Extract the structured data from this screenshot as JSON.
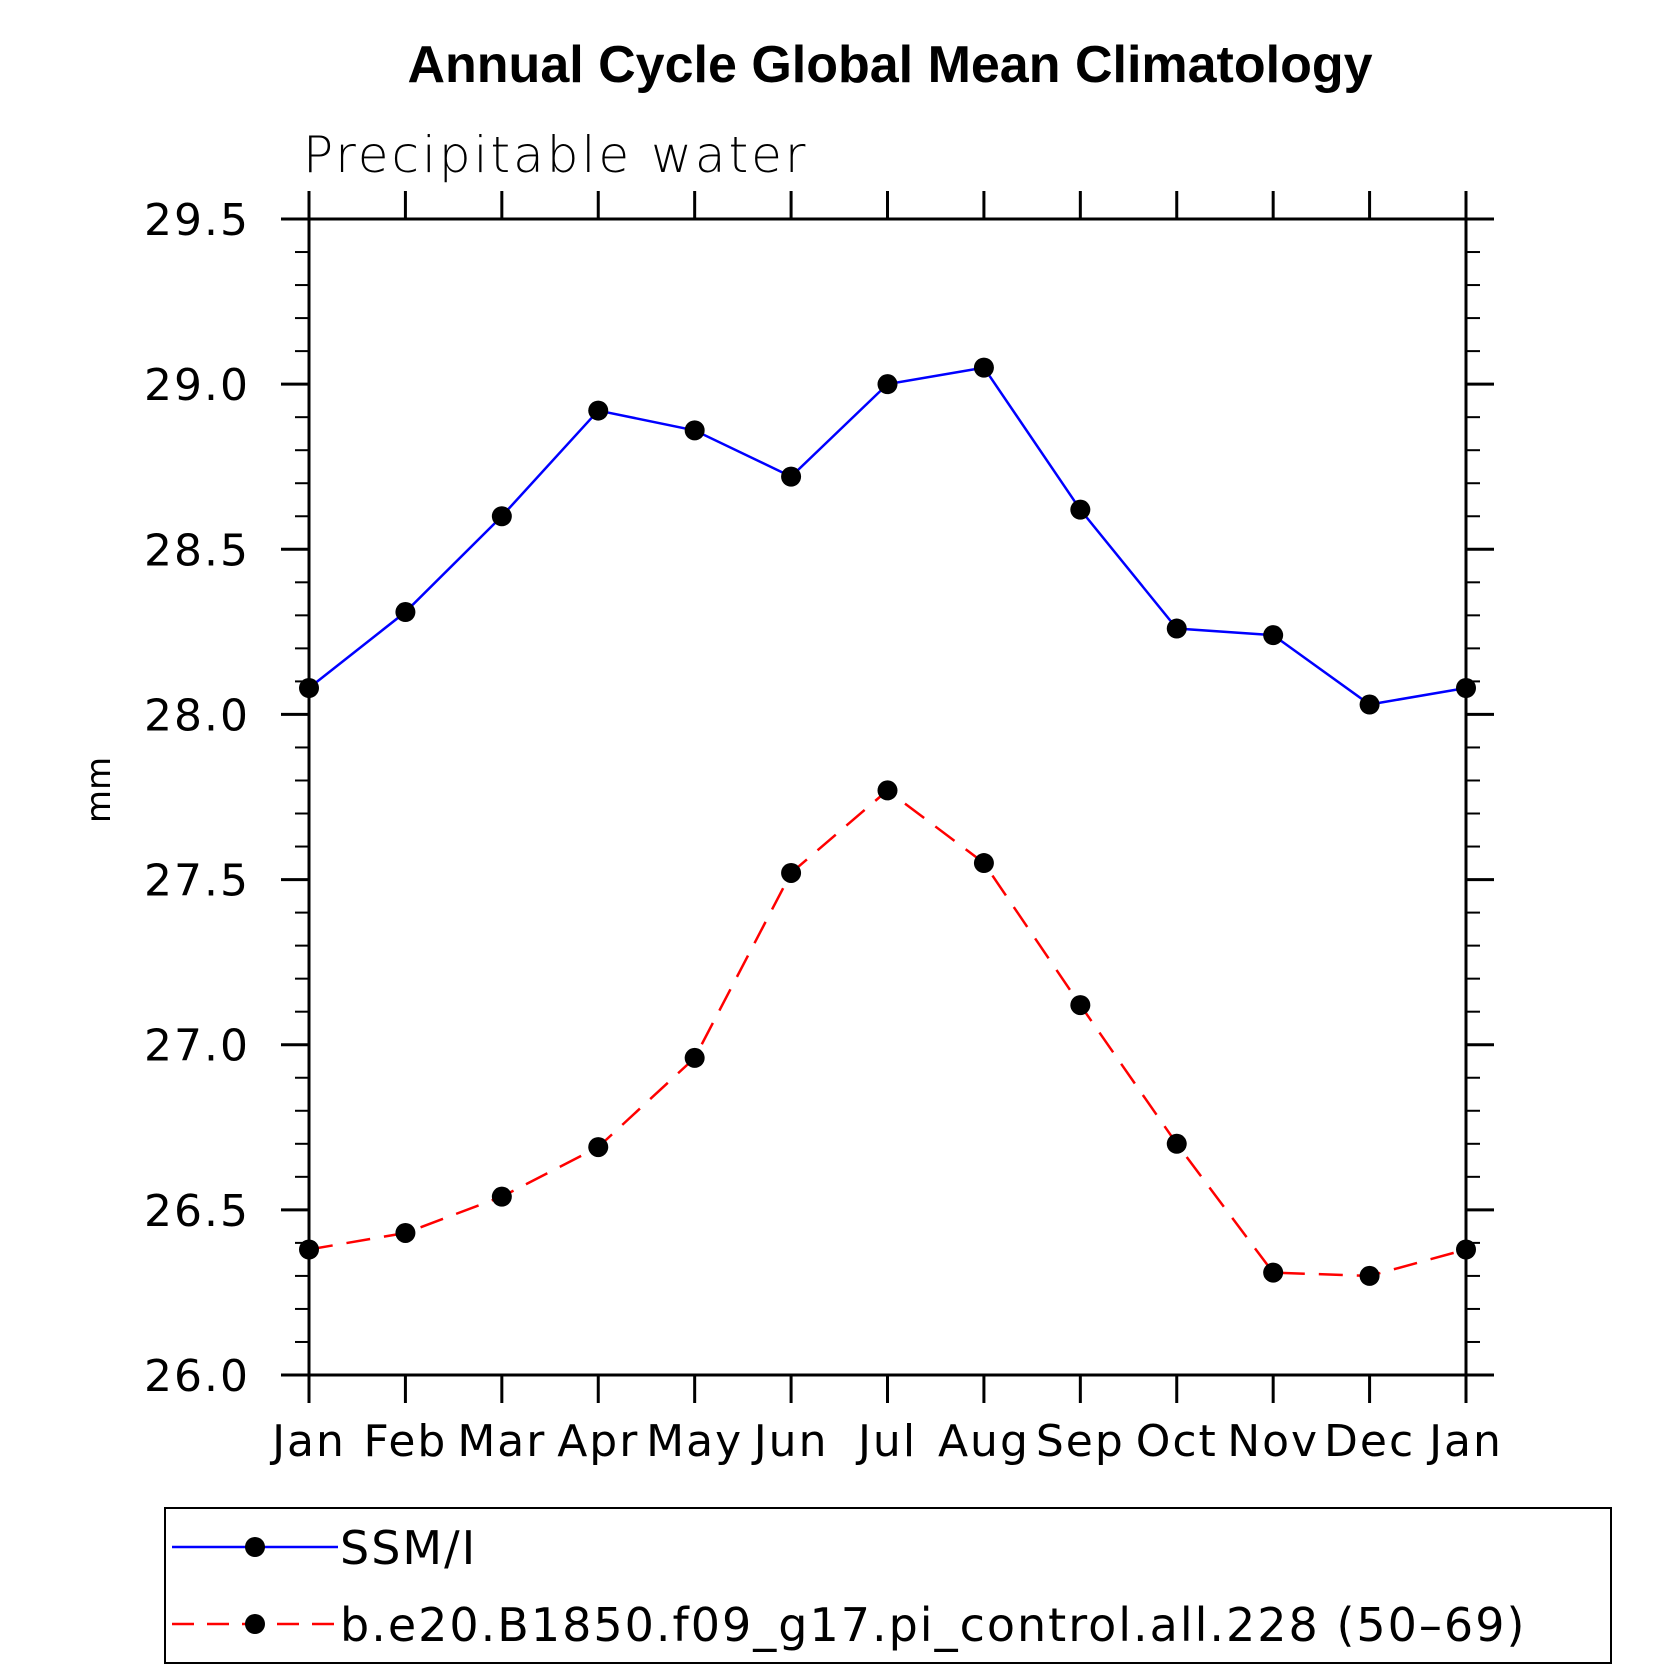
{
  "chart_data": {
    "type": "line",
    "title": "Annual Cycle Global Mean Climatology",
    "subtitle": "Precipitable water",
    "xlabel": "",
    "ylabel": "mm",
    "categories": [
      "Jan",
      "Feb",
      "Mar",
      "Apr",
      "May",
      "Jun",
      "Jul",
      "Aug",
      "Sep",
      "Oct",
      "Nov",
      "Dec",
      "Jan"
    ],
    "ylim": [
      26.0,
      29.5
    ],
    "yticks": [
      "26.0",
      "26.5",
      "27.0",
      "27.5",
      "28.0",
      "28.5",
      "29.0",
      "29.5"
    ],
    "legend_position": "bottom",
    "grid": false,
    "series": [
      {
        "name": "SSM/I",
        "color": "#0000ff",
        "line_style": "solid",
        "marker": "filled-circle",
        "values": [
          28.08,
          28.31,
          28.6,
          28.92,
          28.86,
          28.72,
          29.0,
          29.05,
          28.62,
          28.26,
          28.24,
          28.03,
          28.08
        ]
      },
      {
        "name": "b.e20.B1850.f09_g17.pi_control.all.228 (50–69)",
        "color": "#ff0000",
        "line_style": "dashed",
        "marker": "filled-circle",
        "values": [
          26.38,
          26.43,
          26.54,
          26.69,
          26.96,
          27.52,
          27.77,
          27.55,
          27.12,
          26.7,
          26.31,
          26.3,
          26.38
        ]
      }
    ]
  }
}
